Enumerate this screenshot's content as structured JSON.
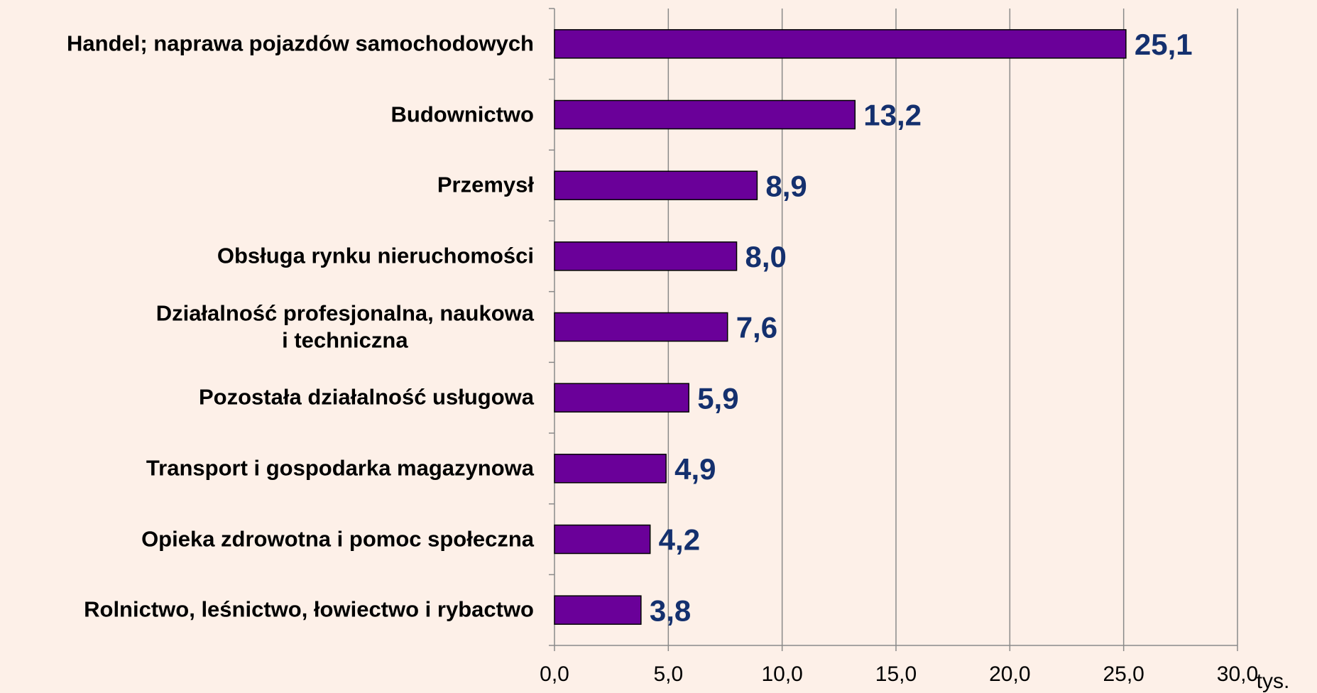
{
  "chart_data": {
    "type": "bar",
    "orientation": "horizontal",
    "categories": [
      "Handel; naprawa pojazdów samochodowych",
      "Budownictwo",
      "Przemysł",
      "Obsługa rynku nieruchomości",
      "Działalność profesjonalna, naukowa\ni techniczna",
      "Pozostała działalność usługowa",
      "Transport i gospodarka magazynowa",
      "Opieka zdrowotna i pomoc społeczna",
      "Rolnictwo, leśnictwo, łowiectwo i rybactwo"
    ],
    "values": [
      25.1,
      13.2,
      8.9,
      8.0,
      7.6,
      5.9,
      4.9,
      4.2,
      3.8
    ],
    "value_labels": [
      "25,1",
      "13,2",
      "8,9",
      "8,0",
      "7,6",
      "5,9",
      "4,9",
      "4,2",
      "3,8"
    ],
    "color": "#6a0099",
    "xlim": [
      0,
      30
    ],
    "xticks": [
      {
        "value": 0,
        "label": "0,0"
      },
      {
        "value": 5,
        "label": "5,0"
      },
      {
        "value": 10,
        "label": "10,0"
      },
      {
        "value": 15,
        "label": "15,0"
      },
      {
        "value": 20,
        "label": "20,0"
      },
      {
        "value": 25,
        "label": "25,0"
      },
      {
        "value": 30,
        "label": "30,0"
      }
    ],
    "xlabel": "tys.",
    "grid": true
  }
}
